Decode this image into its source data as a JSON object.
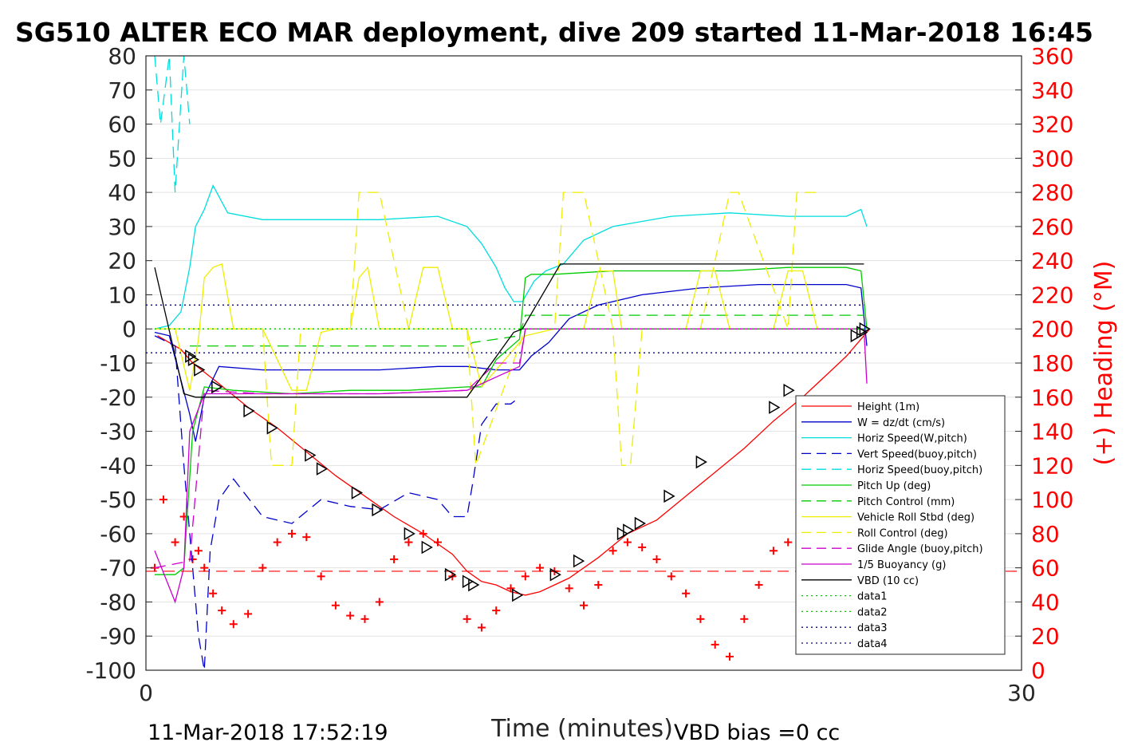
{
  "footer": {
    "timestamp": "11-Mar-2018 17:52:19",
    "vbd_bias": "VBD bias =0 cc"
  },
  "chart_data": {
    "type": "line",
    "title": "SG510 ALTER ECO MAR deployment, dive 209 started 11-Mar-2018 16:45",
    "xlabel": "Time (minutes)",
    "ylabel_right": "(+) Heading (°M)",
    "xlim": [
      0,
      30
    ],
    "ylim": [
      -100,
      80
    ],
    "ylim_right": [
      0,
      360
    ],
    "xticks": [
      "0",
      "30"
    ],
    "yticks": [
      "80",
      "70",
      "60",
      "50",
      "40",
      "30",
      "20",
      "10",
      "0",
      "-10",
      "-20",
      "-30",
      "-40",
      "-50",
      "-60",
      "-70",
      "-80",
      "-90",
      "-100"
    ],
    "yticks_right": [
      "360",
      "340",
      "320",
      "300",
      "280",
      "260",
      "240",
      "220",
      "200",
      "180",
      "160",
      "140",
      "120",
      "100",
      "80",
      "60",
      "40",
      "20",
      "0"
    ],
    "grid": true,
    "legend_position": "lower-right",
    "series": [
      {
        "name": "Height (1m)",
        "color": "#ff0000",
        "style": "solid",
        "x": [
          0.4,
          1.2,
          1.6,
          2.5,
          3.5,
          4.5,
          5.5,
          6.5,
          7.5,
          8.5,
          9.5,
          10.5,
          11.0,
          11.5,
          12.0,
          12.5,
          13.0,
          13.5,
          14.5,
          15.5,
          16.5,
          17.5,
          18.5,
          19.5,
          20.5,
          21.5,
          22.5,
          23.5,
          24.0,
          24.5,
          24.8
        ],
        "y": [
          -2,
          -6,
          -10,
          -16,
          -23,
          -29,
          -36,
          -43,
          -49,
          -55,
          -60,
          -66,
          -71,
          -74,
          -75,
          -77,
          -78,
          -77,
          -73,
          -67,
          -60,
          -56,
          -49,
          -42,
          -35,
          -27,
          -20,
          -12,
          -8,
          -3,
          0
        ]
      },
      {
        "name": "W = dz/dt (cm/s)",
        "color": "#0000cc",
        "style": "solid",
        "x": [
          0.3,
          0.8,
          1.2,
          1.5,
          1.7,
          2.0,
          2.5,
          4.0,
          6.0,
          8.0,
          10.0,
          11.0,
          12.0,
          12.8,
          13.2,
          13.8,
          14.5,
          15.5,
          17.0,
          19.0,
          21.0,
          23.0,
          24.0,
          24.5,
          24.7
        ],
        "y": [
          -1,
          -2,
          -15,
          -25,
          -33,
          -20,
          -11,
          -12,
          -12,
          -12,
          -11,
          -11,
          -12,
          -12,
          -8,
          -4,
          3,
          7,
          10,
          12,
          13,
          13,
          13,
          12,
          -5
        ]
      },
      {
        "name": "Horiz Speed(W,pitch)",
        "color": "#00dddd",
        "style": "solid",
        "x": [
          0.3,
          0.8,
          1.2,
          1.5,
          1.7,
          2.0,
          2.3,
          2.8,
          4.0,
          6.0,
          8.0,
          10.0,
          11.0,
          11.5,
          12.0,
          12.3,
          12.6,
          12.9,
          13.3,
          13.7,
          14.3,
          15.0,
          16.0,
          18.0,
          20.0,
          22.0,
          24.0,
          24.5,
          24.7
        ],
        "y": [
          0,
          1,
          5,
          18,
          30,
          35,
          42,
          34,
          32,
          32,
          32,
          33,
          30,
          25,
          18,
          12,
          8,
          8,
          14,
          17,
          19,
          26,
          30,
          33,
          34,
          33,
          33,
          35,
          30
        ]
      },
      {
        "name": "Vert Speed(buoy,pitch)",
        "color": "#0000cc",
        "style": "dashed",
        "x": [
          0.3,
          1.0,
          1.3,
          1.8,
          2.0,
          2.2,
          2.5,
          3.0,
          4.0,
          5.0,
          6.0,
          7.0,
          8.0,
          9.0,
          10.0,
          10.5,
          11.0,
          11.2,
          11.5,
          12.0,
          12.5,
          12.8
        ],
        "y": [
          -2,
          -5,
          -40,
          -90,
          -100,
          -65,
          -50,
          -44,
          -55,
          -57,
          -50,
          -52,
          -53,
          -48,
          -50,
          -55,
          -55,
          -45,
          -28,
          -22,
          -22,
          -20
        ]
      },
      {
        "name": "Horiz Speed(buoy,pitch)",
        "color": "#00dddd",
        "style": "dashed",
        "x": [
          0.3,
          0.5,
          0.8,
          1.0,
          1.3,
          1.5
        ],
        "y": [
          80,
          60,
          80,
          40,
          80,
          60
        ]
      },
      {
        "name": "Pitch Up (deg)",
        "color": "#00cc00",
        "style": "solid",
        "x": [
          0.3,
          1.0,
          1.3,
          1.6,
          2.0,
          3.0,
          5.0,
          7.0,
          9.0,
          11.0,
          11.5,
          12.0,
          12.8,
          13.0,
          13.2,
          14.0,
          16.0,
          18.0,
          20.0,
          22.0,
          24.0,
          24.5,
          24.7
        ],
        "y": [
          -72,
          -72,
          -70,
          -30,
          -17,
          -18,
          -19,
          -18,
          -18,
          -17,
          -17,
          -9,
          -3,
          15,
          16,
          16,
          17,
          17,
          17,
          18,
          18,
          17,
          0
        ]
      },
      {
        "name": "Pitch Control (mm)",
        "color": "#00cc00",
        "style": "dashed",
        "x": [
          1.5,
          2.0,
          5.0,
          8.0,
          11.0,
          11.2,
          12.8,
          13.0,
          16.0,
          20.0,
          24.0,
          24.6
        ],
        "y": [
          -5,
          -5,
          -5,
          -5,
          -5,
          -4,
          -2,
          4,
          4,
          4,
          4,
          4
        ]
      },
      {
        "name": "Vehicle Roll Stbd (deg)",
        "color": "#eeee00",
        "style": "solid",
        "x": [
          0.3,
          1.0,
          1.5,
          1.8,
          2.0,
          2.3,
          2.6,
          3.0,
          3.5,
          4.0,
          5.0,
          5.5,
          6.0,
          6.5,
          7.0,
          7.3,
          7.6,
          8.0,
          9.0,
          9.5,
          10.0,
          10.5,
          11.0,
          11.5,
          13.0,
          14.0,
          15.0,
          15.5,
          16.0,
          16.3,
          16.6,
          17.0,
          18.5,
          19.0,
          19.5,
          20.0,
          21.5,
          22.0,
          22.5,
          23.0,
          24.0,
          24.6
        ],
        "y": [
          0,
          0,
          -18,
          -3,
          15,
          18,
          19,
          0,
          0,
          0,
          -18,
          -18,
          -1,
          0,
          0,
          15,
          18,
          0,
          0,
          18,
          18,
          0,
          0,
          -17,
          -2,
          0,
          0,
          17,
          17,
          0,
          0,
          0,
          0,
          17,
          17,
          0,
          0,
          17,
          17,
          0,
          0,
          0
        ]
      },
      {
        "name": "Roll Control (deg)",
        "color": "#eeee00",
        "style": "dashed",
        "x": [
          0.3,
          2.0,
          4.0,
          4.3,
          5.0,
          5.3,
          7.0,
          7.3,
          8.0,
          9.0,
          9.5,
          10.5,
          11.0,
          11.3,
          13.0,
          14.0,
          14.3,
          15.0,
          16.0,
          16.3,
          16.6,
          17.0,
          19.0,
          20.0,
          20.3,
          22.0,
          22.3,
          23.0
        ],
        "y": [
          0,
          0,
          0,
          -40,
          -40,
          0,
          0,
          40,
          40,
          0,
          0,
          0,
          0,
          -40,
          0,
          0,
          40,
          40,
          0,
          -40,
          -40,
          0,
          0,
          40,
          40,
          0,
          40,
          40
        ]
      },
      {
        "name": "Glide Angle (buoy,pitch)",
        "color": "#cc00cc",
        "style": "dashed",
        "x": [
          0.3,
          1.5,
          2.0,
          4.0,
          8.0,
          11.0,
          12.0,
          12.8,
          13.0,
          18.0,
          24.0,
          24.6
        ],
        "y": [
          -70,
          -68,
          -18,
          -19,
          -19,
          -18,
          -10,
          -10,
          0,
          0,
          0,
          0
        ]
      },
      {
        "name": "1/5 Buoyancy (g)",
        "color": "#cc00cc",
        "style": "solid",
        "x": [
          0.3,
          1.0,
          1.3,
          1.5,
          2.0,
          4.0,
          8.0,
          11.0,
          12.8,
          13.0,
          18.0,
          24.0,
          24.6,
          24.7
        ],
        "y": [
          -65,
          -80,
          -70,
          -30,
          -19,
          -19,
          -19,
          -18,
          -11,
          0,
          0,
          0,
          0,
          -16
        ]
      },
      {
        "name": "VBD (10 cc)",
        "color": "#000000",
        "style": "solid",
        "x": [
          0.3,
          1.3,
          1.7,
          11.0,
          12.6,
          12.9,
          14.2,
          24.6
        ],
        "y": [
          18,
          -19,
          -20,
          -20,
          -1,
          0,
          19,
          19
        ]
      },
      {
        "name": "data1",
        "color": "#00cc00",
        "style": "dotted",
        "x": [
          0.3,
          24.6
        ],
        "y": [
          0,
          0
        ]
      },
      {
        "name": "data2",
        "color": "#00cc00",
        "style": "dotted",
        "x": [
          0.3,
          24.6
        ],
        "y": [
          0,
          0
        ]
      },
      {
        "name": "data3",
        "color": "#000088",
        "style": "dotted",
        "x": [
          0,
          24.6
        ],
        "y": [
          7,
          7
        ]
      },
      {
        "name": "data4",
        "color": "#000088",
        "style": "dotted",
        "x": [
          0,
          24.6
        ],
        "y": [
          -7,
          -7
        ]
      }
    ],
    "vbd_markers": {
      "color": "#000000",
      "x": [
        1.5,
        1.6,
        1.8,
        2.4,
        3.5,
        4.3,
        5.6,
        6.0,
        7.2,
        7.9,
        9.0,
        9.6,
        10.4,
        11.0,
        11.2,
        12.7,
        14.0,
        14.8,
        16.3,
        16.5,
        16.9,
        17.9,
        19.0,
        21.5,
        22.0,
        24.3,
        24.5,
        24.6
      ],
      "y": [
        -8,
        -9,
        -12,
        -17,
        -24,
        -29,
        -37,
        -41,
        -48,
        -53,
        -60,
        -64,
        -72,
        -74,
        -75,
        -78,
        -72,
        -68,
        -60,
        -59,
        -57,
        -49,
        -39,
        -23,
        -18,
        -2,
        -1,
        0
      ]
    },
    "heading_series": {
      "name": "Heading (°M)",
      "color": "#ff0000",
      "marker": "+",
      "axis": "right",
      "x": [
        0.3,
        0.6,
        1.0,
        1.3,
        1.6,
        1.8,
        2.0,
        2.3,
        2.6,
        3.0,
        3.5,
        4.0,
        4.5,
        5.0,
        5.5,
        6.0,
        6.5,
        7.0,
        7.5,
        8.0,
        8.5,
        9.0,
        9.5,
        10.0,
        10.5,
        11.0,
        11.5,
        12.0,
        12.5,
        13.0,
        13.5,
        14.0,
        14.5,
        15.0,
        15.5,
        16.0,
        16.5,
        17.0,
        17.5,
        18.0,
        18.5,
        19.0,
        19.5,
        20.0,
        20.5,
        21.0,
        21.5,
        22.0,
        22.5,
        23.0,
        23.5,
        24.0,
        24.5
      ],
      "y": [
        60,
        100,
        75,
        90,
        65,
        70,
        60,
        45,
        35,
        27,
        33,
        60,
        75,
        80,
        78,
        55,
        38,
        32,
        30,
        40,
        65,
        75,
        80,
        75,
        55,
        30,
        25,
        35,
        48,
        55,
        60,
        58,
        48,
        38,
        50,
        70,
        75,
        72,
        65,
        55,
        45,
        30,
        15,
        8,
        30,
        50,
        70,
        75,
        72,
        65,
        55,
        40,
        35
      ]
    },
    "heading_reference": {
      "color": "#ff0000",
      "style": "dashed",
      "axis": "right",
      "y": 58
    }
  }
}
